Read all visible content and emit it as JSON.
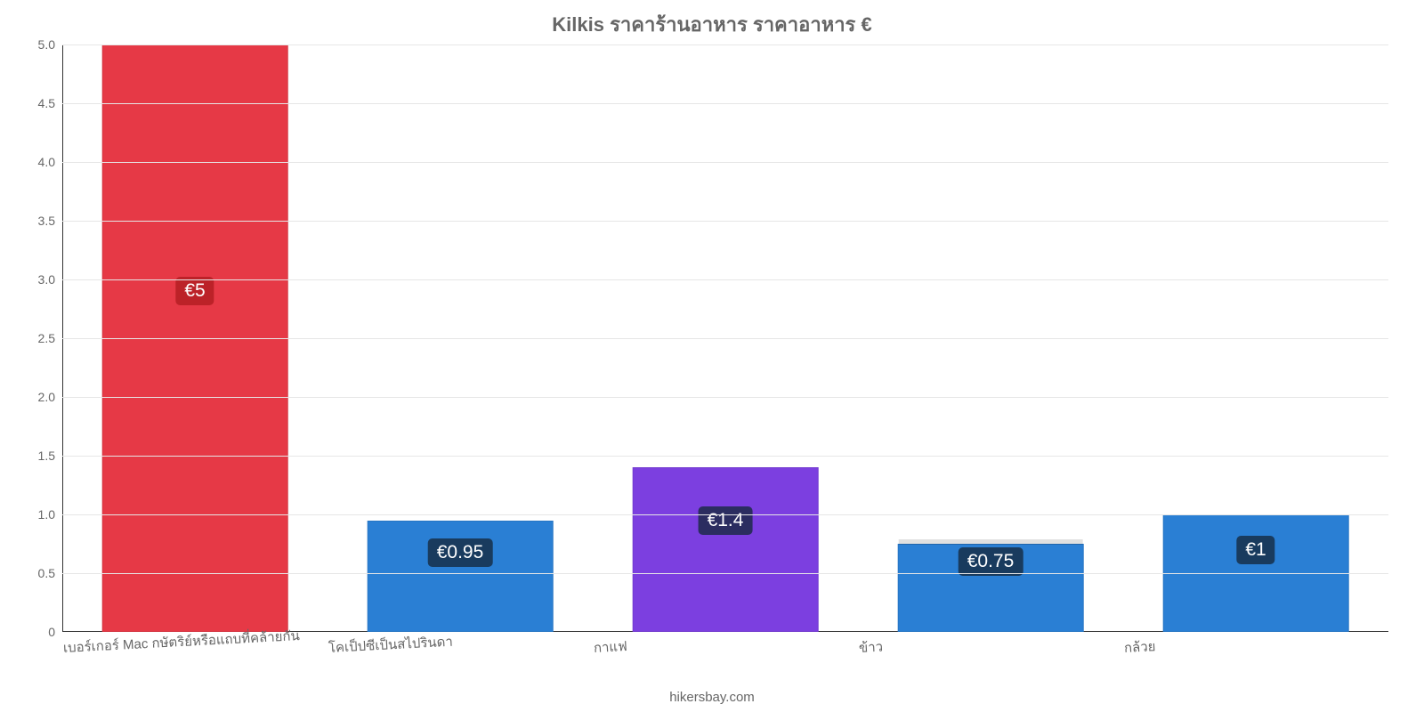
{
  "chart": {
    "type": "bar",
    "title": "Kilkis ราคาร้านอาหาร ราคาอาหาร €",
    "title_color": "#666666",
    "title_fontsize": 22,
    "background_color": "#ffffff",
    "grid_color": "#e6e6e6",
    "axis_color": "#333333",
    "label_color": "#666666",
    "label_fontsize": 15,
    "bar_width_pct": 70,
    "ylim_min": 0,
    "ylim_max": 5.0,
    "ytick_step": 0.5,
    "yticks": [
      "0",
      "0.5",
      "1.0",
      "1.5",
      "2.0",
      "2.5",
      "3.0",
      "3.5",
      "4.0",
      "4.5",
      "5.0"
    ],
    "badge_bg": "rgba(20,40,60,0.78)",
    "badge_text_color": "#ffffff",
    "badge_fontsize": 21,
    "attribution": "hikersbay.com",
    "value_prefix": "€",
    "categories": [
      {
        "label": "เบอร์เกอร์ Mac กษัตริย์หรือแถบที่คล้ายกัน",
        "value": 5.0,
        "display": "€5",
        "color": "#e63946",
        "badge_y_ratio": 0.58,
        "badge_bg": "rgba(180,30,35,0.85)"
      },
      {
        "label": "โคเป็ปซีเป็นสไปรินดา",
        "value": 0.95,
        "display": "€0.95",
        "color": "#2a7fd4",
        "badge_y_ratio": 0.135,
        "badge_bg": "rgba(20,40,60,0.78)"
      },
      {
        "label": "กาแฟ",
        "value": 1.4,
        "display": "€1.4",
        "color": "#7c3fe0",
        "badge_y_ratio": 0.19,
        "badge_bg": "rgba(20,40,60,0.78)"
      },
      {
        "label": "ข้าว",
        "value": 0.75,
        "display": "€0.75",
        "color": "#2a7fd4",
        "badge_y_ratio": 0.12,
        "badge_bg": "rgba(20,40,60,0.78)",
        "show_top_shadow": true
      },
      {
        "label": "กล้วย",
        "value": 1.0,
        "display": "€1",
        "color": "#2a7fd4",
        "badge_y_ratio": 0.14,
        "badge_bg": "rgba(20,40,60,0.78)"
      }
    ]
  }
}
